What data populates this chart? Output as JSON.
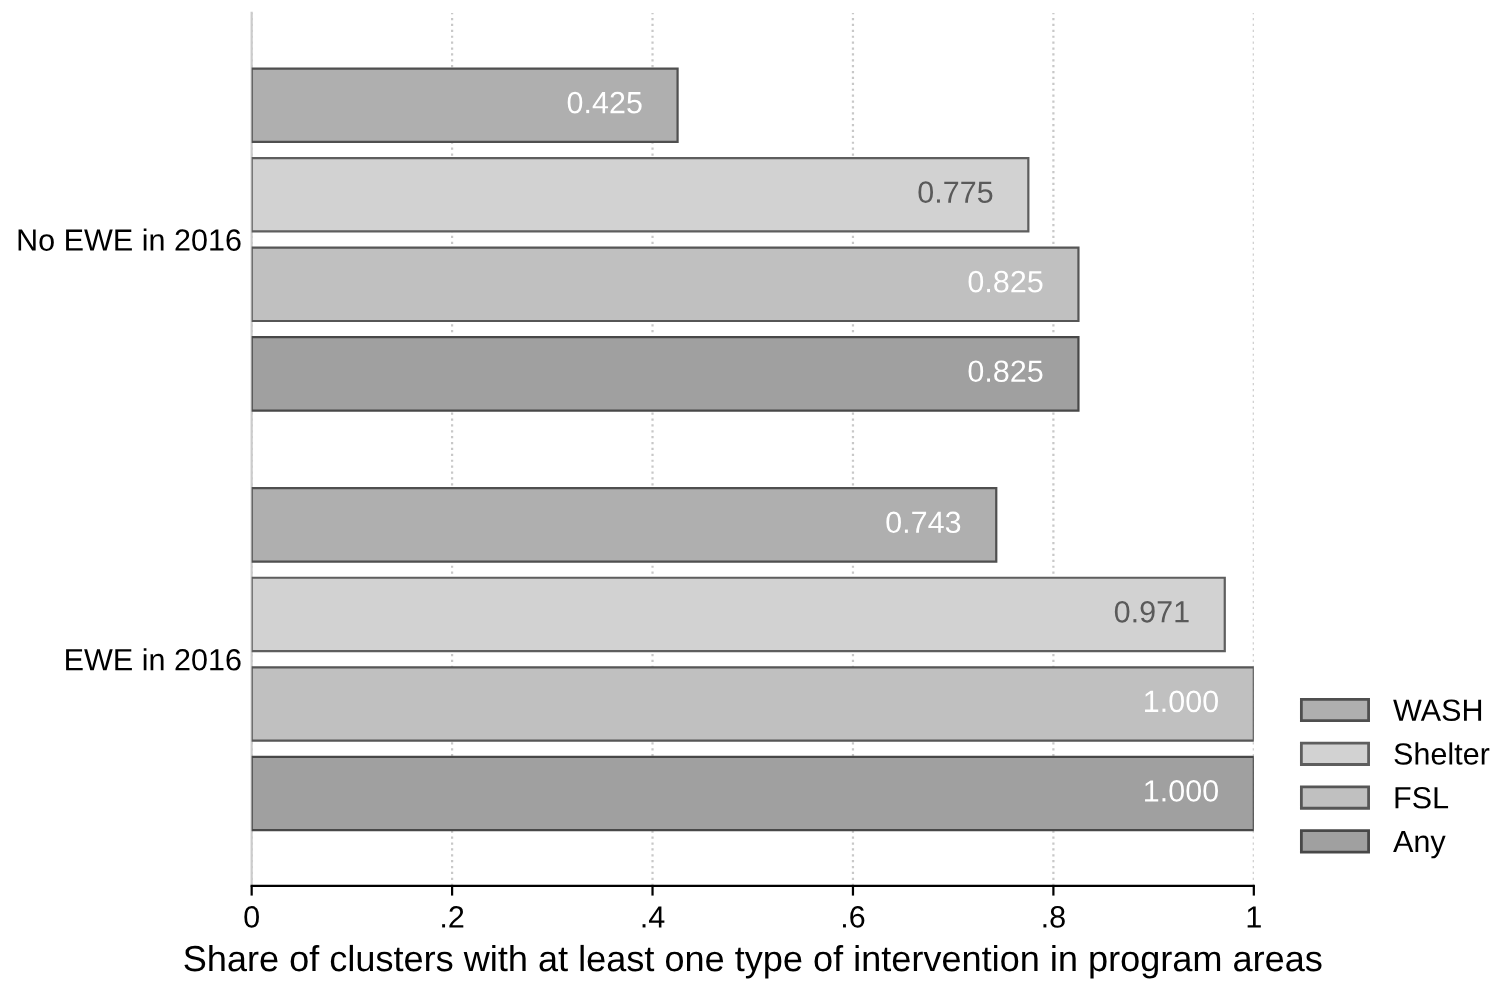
{
  "chart_data": {
    "type": "bar",
    "orientation": "horizontal",
    "categories": [
      "No EWE in 2016",
      "EWE in 2016"
    ],
    "series": [
      {
        "name": "WASH",
        "color": "#afafaf",
        "values": [
          0.425,
          0.743
        ],
        "value_labels": [
          "0.425",
          "0.743"
        ]
      },
      {
        "name": "Shelter",
        "color": "#d2d2d2",
        "values": [
          0.775,
          0.971
        ],
        "value_labels": [
          "0.775",
          "0.971"
        ]
      },
      {
        "name": "FSL",
        "color": "#c0c0c0",
        "values": [
          0.825,
          1.0
        ],
        "value_labels": [
          "0.825",
          "1.000"
        ]
      },
      {
        "name": "Any",
        "color": "#a0a0a0",
        "values": [
          0.825,
          1.0
        ],
        "value_labels": [
          "0.825",
          "1.000"
        ]
      }
    ],
    "xlim": [
      0,
      1
    ],
    "xticks": [
      0,
      {
        "value": 0.2,
        "label": ".2"
      },
      {
        "value": 0.4,
        "label": ".4"
      },
      {
        "value": 0.6,
        "label": ".6"
      },
      {
        "value": 0.8,
        "label": ".8"
      },
      1
    ],
    "xlabel": "Share of clusters with at least one type of intervention in program areas",
    "grid": "x",
    "legend": "bottom right"
  }
}
